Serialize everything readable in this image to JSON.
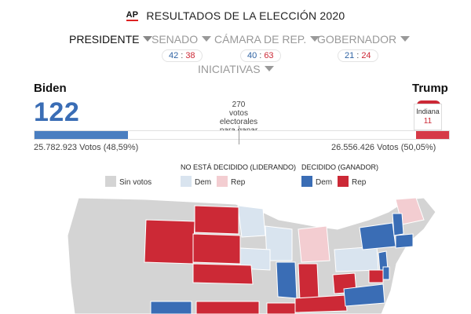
{
  "header": {
    "logo": "AP",
    "title": "RESULTADOS DE LA ELECCIÓN 2020"
  },
  "nav": {
    "tabs": [
      {
        "label": "PRESIDENTE",
        "active": true
      },
      {
        "label": "SENADO",
        "dem": "42",
        "rep": "38"
      },
      {
        "label": "CÁMARA DE REP.",
        "dem": "40",
        "rep": "63"
      },
      {
        "label": "GOBERNADOR",
        "dem": "21",
        "rep": "24"
      },
      {
        "label": "INICIATIVAS"
      }
    ],
    "score_sep": ":"
  },
  "race": {
    "dem": {
      "name": "Biden",
      "electoral": "122",
      "votes": "25.782.923 Votos (48,59%)",
      "bar_fraction": 0.225
    },
    "rep": {
      "name": "Trump",
      "votes": "26.556.426 Votos (50,05%)",
      "bar_fraction": 0.08
    },
    "threshold": {
      "line1": "270",
      "line2": "votos",
      "line3": "electorales",
      "line4": "para ganar"
    },
    "tooltip": {
      "state": "Indiana",
      "electoral": "11"
    }
  },
  "legend": {
    "no_votes": "Sin votos",
    "leading_head": "NO ESTÁ DECIDIDO (LIDERANDO)",
    "decided_head": "DECIDIDO (GANADOR)",
    "dem": "Dem",
    "rep": "Rep"
  },
  "colors": {
    "dem_decided": "#3a6db5",
    "rep_decided": "#cc2936",
    "dem_leading": "#d9e4ef",
    "rep_leading": "#f3cdd1",
    "no_votes": "#d4d4d4"
  }
}
